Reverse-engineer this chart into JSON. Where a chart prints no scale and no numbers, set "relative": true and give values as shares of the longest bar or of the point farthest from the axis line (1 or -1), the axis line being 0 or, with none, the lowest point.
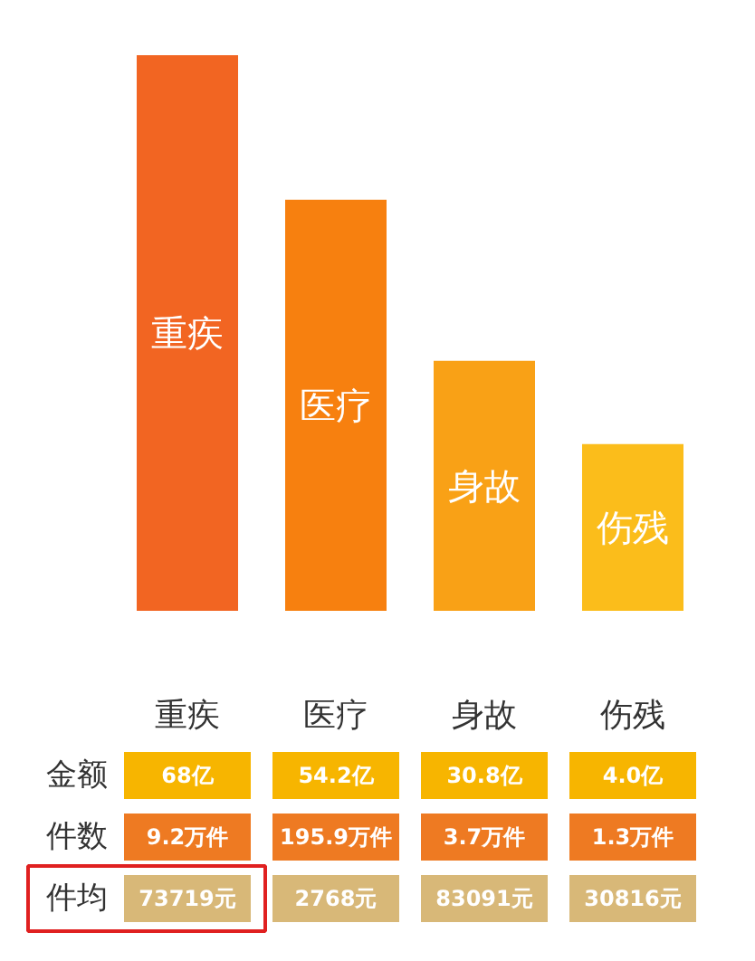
{
  "chart_data": {
    "type": "bar",
    "relative": true,
    "categories": [
      "重疾",
      "医疗",
      "身故",
      "伤残"
    ],
    "values": [
      1,
      0.74,
      0.45,
      0.3
    ],
    "colors": [
      "#f26522",
      "#f7800f",
      "#f9a116",
      "#fbbd1b"
    ],
    "annotations": [
      "金额",
      "68亿",
      "54.2亿",
      "30.8亿",
      "4.0亿",
      "件数",
      "9.2万件",
      "195.9万件",
      "3.7万件",
      "1.3万件",
      "件均",
      "73719元",
      "2768元",
      "83091元",
      "30816元"
    ]
  }
}
